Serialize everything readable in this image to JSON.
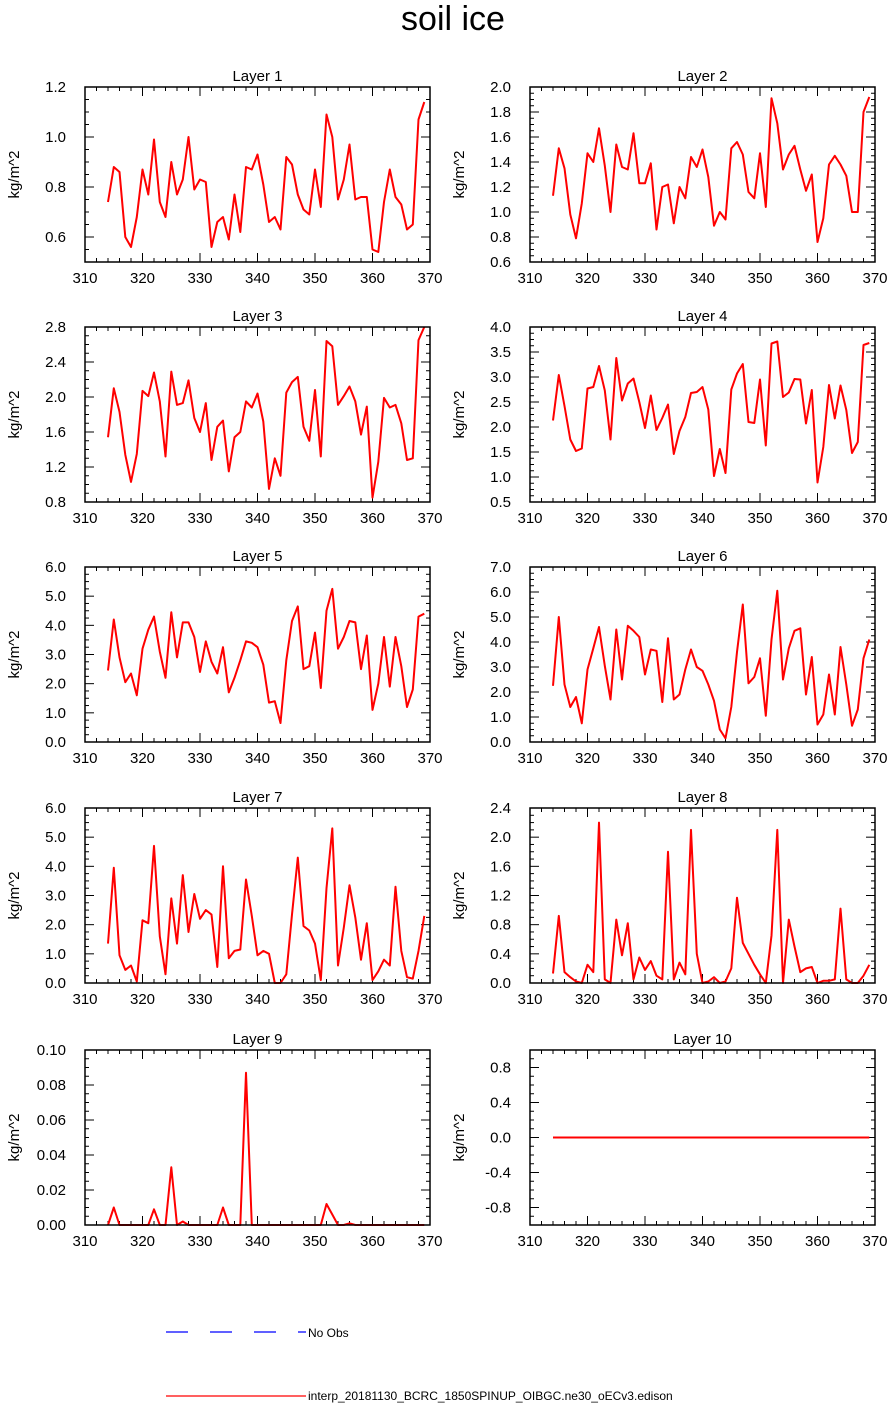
{
  "figure_title": "soil ice",
  "legend": {
    "obs_label": "No Obs",
    "obs_color": "#0000ff",
    "model_label": "interp_20181130_BCRC_1850SPINUP_OIBGC.ne30_oECv3.edison",
    "model_color": "#ff0000"
  },
  "chart_data": [
    {
      "type": "line",
      "title": "Layer 1",
      "xlabel": "",
      "ylabel": "kg/m^2",
      "xlim": [
        310,
        370
      ],
      "ylim": [
        0.5,
        1.2
      ],
      "xticks": [
        "310",
        "320",
        "330",
        "340",
        "350",
        "360",
        "370"
      ],
      "yticks": [
        "0.6",
        "0.8",
        "1.0",
        "1.2"
      ],
      "ytick_values": [
        0.6,
        0.8,
        1.0,
        1.2
      ],
      "x": [
        314,
        315,
        316,
        317,
        318,
        319,
        320,
        321,
        322,
        323,
        324,
        325,
        326,
        327,
        328,
        329,
        330,
        331,
        332,
        333,
        334,
        335,
        336,
        337,
        338,
        339,
        340,
        341,
        342,
        343,
        344,
        345,
        346,
        347,
        348,
        349,
        350,
        351,
        352,
        353,
        354,
        355,
        356,
        357,
        358,
        359,
        360,
        361,
        362,
        363,
        364,
        365,
        366,
        367,
        368,
        369
      ],
      "y": [
        0.74,
        0.88,
        0.86,
        0.6,
        0.56,
        0.68,
        0.87,
        0.77,
        0.99,
        0.74,
        0.68,
        0.9,
        0.77,
        0.83,
        1.0,
        0.79,
        0.83,
        0.82,
        0.56,
        0.66,
        0.68,
        0.59,
        0.77,
        0.62,
        0.88,
        0.87,
        0.93,
        0.81,
        0.66,
        0.68,
        0.63,
        0.92,
        0.89,
        0.77,
        0.71,
        0.69,
        0.87,
        0.72,
        1.09,
        1.0,
        0.75,
        0.83,
        0.97,
        0.75,
        0.76,
        0.76,
        0.55,
        0.54,
        0.74,
        0.87,
        0.76,
        0.73,
        0.63,
        0.65,
        1.07,
        1.14
      ]
    },
    {
      "type": "line",
      "title": "Layer 2",
      "xlabel": "",
      "ylabel": "kg/m^2",
      "xlim": [
        310,
        370
      ],
      "ylim": [
        0.6,
        2.0
      ],
      "xticks": [
        "310",
        "320",
        "330",
        "340",
        "350",
        "360",
        "370"
      ],
      "yticks": [
        "0.6",
        "0.8",
        "1.0",
        "1.2",
        "1.4",
        "1.6",
        "1.8",
        "2.0"
      ],
      "ytick_values": [
        0.6,
        0.8,
        1.0,
        1.2,
        1.4,
        1.6,
        1.8,
        2.0
      ],
      "x": [
        314,
        315,
        316,
        317,
        318,
        319,
        320,
        321,
        322,
        323,
        324,
        325,
        326,
        327,
        328,
        329,
        330,
        331,
        332,
        333,
        334,
        335,
        336,
        337,
        338,
        339,
        340,
        341,
        342,
        343,
        344,
        345,
        346,
        347,
        348,
        349,
        350,
        351,
        352,
        353,
        354,
        355,
        356,
        357,
        358,
        359,
        360,
        361,
        362,
        363,
        364,
        365,
        366,
        367,
        368,
        369
      ],
      "y": [
        1.13,
        1.51,
        1.35,
        0.98,
        0.79,
        1.07,
        1.47,
        1.4,
        1.67,
        1.37,
        1.0,
        1.54,
        1.36,
        1.34,
        1.63,
        1.23,
        1.23,
        1.39,
        0.86,
        1.2,
        1.22,
        0.91,
        1.2,
        1.11,
        1.44,
        1.36,
        1.5,
        1.28,
        0.89,
        1.0,
        0.94,
        1.51,
        1.56,
        1.46,
        1.16,
        1.11,
        1.47,
        1.04,
        1.91,
        1.71,
        1.34,
        1.46,
        1.53,
        1.34,
        1.17,
        1.3,
        0.76,
        0.95,
        1.38,
        1.45,
        1.38,
        1.29,
        1.0,
        1.0,
        1.8,
        1.92
      ]
    },
    {
      "type": "line",
      "title": "Layer 3",
      "xlabel": "",
      "ylabel": "kg/m^2",
      "xlim": [
        310,
        370
      ],
      "ylim": [
        0.8,
        2.8
      ],
      "xticks": [
        "310",
        "320",
        "330",
        "340",
        "350",
        "360",
        "370"
      ],
      "yticks": [
        "0.8",
        "1.2",
        "1.6",
        "2.0",
        "2.4",
        "2.8"
      ],
      "ytick_values": [
        0.8,
        1.2,
        1.6,
        2.0,
        2.4,
        2.8
      ],
      "x": [
        314,
        315,
        316,
        317,
        318,
        319,
        320,
        321,
        322,
        323,
        324,
        325,
        326,
        327,
        328,
        329,
        330,
        331,
        332,
        333,
        334,
        335,
        336,
        337,
        338,
        339,
        340,
        341,
        342,
        343,
        344,
        345,
        346,
        347,
        348,
        349,
        350,
        351,
        352,
        353,
        354,
        355,
        356,
        357,
        358,
        359,
        360,
        361,
        362,
        363,
        364,
        365,
        366,
        367,
        368,
        369
      ],
      "y": [
        1.54,
        2.1,
        1.83,
        1.34,
        1.03,
        1.35,
        2.07,
        2.01,
        2.28,
        1.95,
        1.32,
        2.29,
        1.91,
        1.93,
        2.19,
        1.76,
        1.6,
        1.93,
        1.28,
        1.66,
        1.73,
        1.15,
        1.54,
        1.6,
        1.95,
        1.88,
        2.04,
        1.72,
        0.95,
        1.3,
        1.1,
        2.05,
        2.17,
        2.23,
        1.66,
        1.5,
        2.08,
        1.32,
        2.64,
        2.58,
        1.91,
        2.01,
        2.12,
        1.95,
        1.57,
        1.89,
        0.85,
        1.26,
        1.99,
        1.88,
        1.91,
        1.7,
        1.28,
        1.3,
        2.65,
        2.8
      ]
    },
    {
      "type": "line",
      "title": "Layer 4",
      "xlabel": "",
      "ylabel": "kg/m^2",
      "xlim": [
        310,
        370
      ],
      "ylim": [
        0.5,
        4.0
      ],
      "xticks": [
        "310",
        "320",
        "330",
        "340",
        "350",
        "360",
        "370"
      ],
      "yticks": [
        "0.5",
        "1.0",
        "1.5",
        "2.0",
        "2.5",
        "3.0",
        "3.5",
        "4.0"
      ],
      "ytick_values": [
        0.5,
        1.0,
        1.5,
        2.0,
        2.5,
        3.0,
        3.5,
        4.0
      ],
      "x": [
        314,
        315,
        316,
        317,
        318,
        319,
        320,
        321,
        322,
        323,
        324,
        325,
        326,
        327,
        328,
        329,
        330,
        331,
        332,
        333,
        334,
        335,
        336,
        337,
        338,
        339,
        340,
        341,
        342,
        343,
        344,
        345,
        346,
        347,
        348,
        349,
        350,
        351,
        352,
        353,
        354,
        355,
        356,
        357,
        358,
        359,
        360,
        361,
        362,
        363,
        364,
        365,
        366,
        367,
        368,
        369
      ],
      "y": [
        2.13,
        3.04,
        2.42,
        1.75,
        1.52,
        1.57,
        2.77,
        2.8,
        3.22,
        2.73,
        1.75,
        3.38,
        2.53,
        2.87,
        2.97,
        2.5,
        1.98,
        2.63,
        1.94,
        2.18,
        2.45,
        1.46,
        1.92,
        2.2,
        2.68,
        2.7,
        2.8,
        2.35,
        1.02,
        1.56,
        1.08,
        2.75,
        3.07,
        3.26,
        2.1,
        2.08,
        2.95,
        1.63,
        3.67,
        3.71,
        2.6,
        2.69,
        2.96,
        2.95,
        2.07,
        2.74,
        0.89,
        1.6,
        2.84,
        2.17,
        2.83,
        2.34,
        1.48,
        1.7,
        3.64,
        3.68
      ]
    },
    {
      "type": "line",
      "title": "Layer 5",
      "xlabel": "",
      "ylabel": "kg/m^2",
      "xlim": [
        310,
        370
      ],
      "ylim": [
        0.0,
        6.0
      ],
      "xticks": [
        "310",
        "320",
        "330",
        "340",
        "350",
        "360",
        "370"
      ],
      "yticks": [
        "0.0",
        "1.0",
        "2.0",
        "3.0",
        "4.0",
        "5.0",
        "6.0"
      ],
      "ytick_values": [
        0,
        1,
        2,
        3,
        4,
        5,
        6
      ],
      "x": [
        314,
        315,
        316,
        317,
        318,
        319,
        320,
        321,
        322,
        323,
        324,
        325,
        326,
        327,
        328,
        329,
        330,
        331,
        332,
        333,
        334,
        335,
        336,
        337,
        338,
        339,
        340,
        341,
        342,
        343,
        344,
        345,
        346,
        347,
        348,
        349,
        350,
        351,
        352,
        353,
        354,
        355,
        356,
        357,
        358,
        359,
        360,
        361,
        362,
        363,
        364,
        365,
        366,
        367,
        368,
        369
      ],
      "y": [
        2.45,
        4.2,
        2.9,
        2.05,
        2.35,
        1.6,
        3.2,
        3.85,
        4.3,
        3.1,
        2.2,
        4.45,
        2.9,
        4.1,
        4.1,
        3.6,
        2.4,
        3.45,
        2.75,
        2.35,
        3.25,
        1.7,
        2.2,
        2.8,
        3.45,
        3.4,
        3.25,
        2.65,
        1.35,
        1.4,
        0.65,
        2.8,
        4.15,
        4.65,
        2.5,
        2.6,
        3.75,
        1.85,
        4.5,
        5.25,
        3.2,
        3.6,
        4.15,
        4.1,
        2.5,
        3.65,
        1.1,
        2.0,
        3.6,
        1.9,
        3.6,
        2.6,
        1.2,
        1.8,
        4.3,
        4.4
      ]
    },
    {
      "type": "line",
      "title": "Layer 6",
      "xlabel": "",
      "ylabel": "kg/m^2",
      "xlim": [
        310,
        370
      ],
      "ylim": [
        0.0,
        7.0
      ],
      "xticks": [
        "310",
        "320",
        "330",
        "340",
        "350",
        "360",
        "370"
      ],
      "yticks": [
        "0.0",
        "1.0",
        "2.0",
        "3.0",
        "4.0",
        "5.0",
        "6.0",
        "7.0"
      ],
      "ytick_values": [
        0,
        1,
        2,
        3,
        4,
        5,
        6,
        7
      ],
      "x": [
        314,
        315,
        316,
        317,
        318,
        319,
        320,
        321,
        322,
        323,
        324,
        325,
        326,
        327,
        328,
        329,
        330,
        331,
        332,
        333,
        334,
        335,
        336,
        337,
        338,
        339,
        340,
        341,
        342,
        343,
        344,
        345,
        346,
        347,
        348,
        349,
        350,
        351,
        352,
        353,
        354,
        355,
        356,
        357,
        358,
        359,
        360,
        361,
        362,
        363,
        364,
        365,
        366,
        367,
        368,
        369
      ],
      "y": [
        2.25,
        5.0,
        2.3,
        1.4,
        1.8,
        0.75,
        2.9,
        3.75,
        4.6,
        3.05,
        1.7,
        4.5,
        2.5,
        4.65,
        4.45,
        4.2,
        2.7,
        3.7,
        3.65,
        1.6,
        4.15,
        1.7,
        1.9,
        2.9,
        3.7,
        3.0,
        2.85,
        2.3,
        1.65,
        0.5,
        0.15,
        1.4,
        3.6,
        5.5,
        2.35,
        2.6,
        3.35,
        1.05,
        4.1,
        6.05,
        2.5,
        3.75,
        4.45,
        4.55,
        1.9,
        3.4,
        0.7,
        1.1,
        2.7,
        1.1,
        3.8,
        2.3,
        0.65,
        1.3,
        3.35,
        4.1
      ]
    },
    {
      "type": "line",
      "title": "Layer 7",
      "xlabel": "",
      "ylabel": "kg/m^2",
      "xlim": [
        310,
        370
      ],
      "ylim": [
        0.0,
        6.0
      ],
      "xticks": [
        "310",
        "320",
        "330",
        "340",
        "350",
        "360",
        "370"
      ],
      "yticks": [
        "0.0",
        "1.0",
        "2.0",
        "3.0",
        "4.0",
        "5.0",
        "6.0"
      ],
      "ytick_values": [
        0,
        1,
        2,
        3,
        4,
        5,
        6
      ],
      "x": [
        314,
        315,
        316,
        317,
        318,
        319,
        320,
        321,
        322,
        323,
        324,
        325,
        326,
        327,
        328,
        329,
        330,
        331,
        332,
        333,
        334,
        335,
        336,
        337,
        338,
        339,
        340,
        341,
        342,
        343,
        344,
        345,
        346,
        347,
        348,
        349,
        350,
        351,
        352,
        353,
        354,
        355,
        356,
        357,
        358,
        359,
        360,
        361,
        362,
        363,
        364,
        365,
        366,
        367,
        368,
        369
      ],
      "y": [
        1.35,
        3.95,
        0.95,
        0.45,
        0.6,
        0.05,
        2.15,
        2.05,
        4.7,
        1.6,
        0.3,
        2.9,
        1.35,
        3.7,
        1.75,
        3.05,
        2.2,
        2.5,
        2.35,
        0.55,
        4.0,
        0.85,
        1.1,
        1.15,
        3.55,
        2.3,
        0.95,
        1.1,
        1.0,
        0.0,
        0.0,
        0.3,
        2.35,
        4.3,
        1.95,
        1.8,
        1.35,
        0.1,
        3.25,
        5.3,
        0.6,
        1.9,
        3.35,
        2.25,
        0.8,
        2.05,
        0.1,
        0.4,
        0.8,
        0.6,
        3.3,
        1.1,
        0.2,
        0.15,
        1.1,
        2.3
      ]
    },
    {
      "type": "line",
      "title": "Layer 8",
      "xlabel": "",
      "ylabel": "kg/m^2",
      "xlim": [
        310,
        370
      ],
      "ylim": [
        0.0,
        2.4
      ],
      "xticks": [
        "310",
        "320",
        "330",
        "340",
        "350",
        "360",
        "370"
      ],
      "yticks": [
        "0.0",
        "0.4",
        "0.8",
        "1.2",
        "1.6",
        "2.0",
        "2.4"
      ],
      "ytick_values": [
        0,
        0.4,
        0.8,
        1.2,
        1.6,
        2.0,
        2.4
      ],
      "x": [
        314,
        315,
        316,
        317,
        318,
        319,
        320,
        321,
        322,
        323,
        324,
        325,
        326,
        327,
        328,
        329,
        330,
        331,
        332,
        333,
        334,
        335,
        336,
        337,
        338,
        339,
        340,
        341,
        342,
        343,
        344,
        345,
        346,
        347,
        348,
        349,
        350,
        351,
        352,
        353,
        354,
        355,
        356,
        357,
        358,
        359,
        360,
        361,
        362,
        363,
        364,
        365,
        366,
        367,
        368,
        369
      ],
      "y": [
        0.13,
        0.92,
        0.15,
        0.08,
        0.02,
        0.0,
        0.25,
        0.15,
        2.2,
        0.05,
        0.0,
        0.87,
        0.38,
        0.82,
        0.05,
        0.35,
        0.18,
        0.3,
        0.1,
        0.05,
        1.8,
        0.05,
        0.28,
        0.12,
        2.1,
        0.4,
        0.0,
        0.02,
        0.08,
        0.0,
        0.02,
        0.2,
        1.17,
        0.55,
        0.4,
        0.25,
        0.12,
        0.0,
        0.65,
        2.1,
        0.0,
        0.87,
        0.5,
        0.15,
        0.2,
        0.22,
        0.0,
        0.03,
        0.03,
        0.05,
        1.02,
        0.05,
        0.0,
        0.0,
        0.1,
        0.25
      ]
    },
    {
      "type": "line",
      "title": "Layer 9",
      "xlabel": "",
      "ylabel": "kg/m^2",
      "xlim": [
        310,
        370
      ],
      "ylim": [
        0.0,
        0.1
      ],
      "xticks": [
        "310",
        "320",
        "330",
        "340",
        "350",
        "360",
        "370"
      ],
      "yticks": [
        "0.00",
        "0.02",
        "0.04",
        "0.06",
        "0.08",
        "0.10"
      ],
      "ytick_values": [
        0,
        0.02,
        0.04,
        0.06,
        0.08,
        0.1
      ],
      "x": [
        314,
        315,
        316,
        317,
        318,
        319,
        320,
        321,
        322,
        323,
        324,
        325,
        326,
        327,
        328,
        329,
        330,
        331,
        332,
        333,
        334,
        335,
        336,
        337,
        338,
        339,
        340,
        341,
        342,
        343,
        344,
        345,
        346,
        347,
        348,
        349,
        350,
        351,
        352,
        353,
        354,
        355,
        356,
        357,
        358,
        359,
        360,
        361,
        362,
        363,
        364,
        365,
        366,
        367,
        368,
        369
      ],
      "y": [
        0.0,
        0.01,
        0.0,
        0.0,
        0.0,
        0.0,
        0.0,
        0.0,
        0.009,
        0.0,
        0.0,
        0.033,
        0.0,
        0.002,
        0.0,
        0.0,
        0.0,
        0.0,
        0.0,
        0.0,
        0.01,
        0.0,
        0.0,
        0.0,
        0.087,
        0.0,
        0.0,
        0.0,
        0.0,
        0.0,
        0.0,
        0.0,
        0.0,
        0.0,
        0.0,
        0.0,
        0.0,
        0.0,
        0.012,
        0.006,
        0.0,
        0.0,
        0.001,
        0.0,
        0.0,
        0.0,
        0.0,
        0.0,
        0.0,
        0.0,
        0.0,
        0.0,
        0.0,
        0.0,
        0.0,
        0.0
      ]
    },
    {
      "type": "line",
      "title": "Layer 10",
      "xlabel": "",
      "ylabel": "kg/m^2",
      "xlim": [
        310,
        370
      ],
      "ylim": [
        -1.0,
        1.0
      ],
      "xticks": [
        "310",
        "320",
        "330",
        "340",
        "350",
        "360",
        "370"
      ],
      "yticks": [
        "-0.8",
        "-0.4",
        "0.0",
        "0.4",
        "0.8"
      ],
      "ytick_values": [
        -0.8,
        -0.4,
        0,
        0.4,
        0.8
      ],
      "x": [
        314,
        369
      ],
      "y": [
        0.0,
        0.0
      ]
    }
  ]
}
